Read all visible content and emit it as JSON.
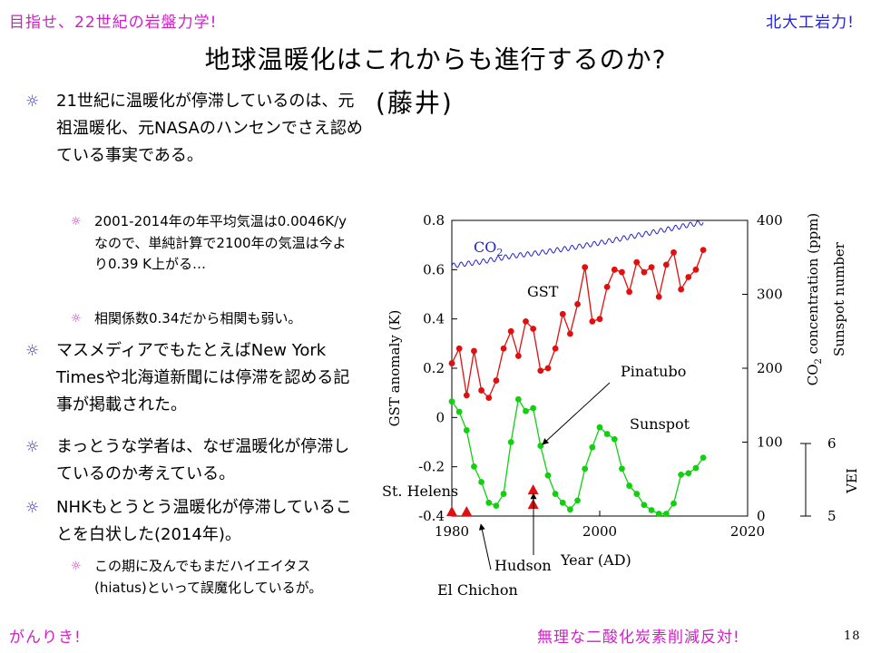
{
  "header": {
    "top_left": "目指せ、22世紀の岩盤力学!",
    "top_right": "北大工岩力!",
    "title": "地球温暖化はこれからも進行するのか?",
    "subtitle": "(藤井)"
  },
  "footer": {
    "bottom_left": "がんりき!",
    "bottom_right": "無理な二酸化炭素削減反対!",
    "page_number": "18"
  },
  "bullets": [
    {
      "text": "21世紀に温暖化が停滞しているのは、元祖温暖化、元NASAのハンセンでさえ認めている事実である。",
      "sub": [
        "2001-2014年の年平均気温は0.0046K/yなので、単純計算で2100年の気温は今より0.39 K上がる…",
        "相関係数0.34だから相関も弱い。"
      ]
    },
    {
      "text": "マスメディアでもたとえばNew York Timesや北海道新聞には停滞を認める記事が掲載された。",
      "sub": []
    },
    {
      "text": "まっとうな学者は、なぜ温暖化が停滞しているのか考えている。",
      "sub": []
    },
    {
      "text": "NHKもとうとう温暖化が停滞していることを白状した(2014年)。",
      "sub": [
        "この期に及んでもまだハイエイタス(hiatus)といって誤魔化しているが。"
      ]
    }
  ],
  "chart_data": {
    "type": "line",
    "xlabel": "Year (AD)",
    "ylabel_left": "GST anomaly (K)",
    "ylabel_right_1": "CO2 concentration (ppm)",
    "ylabel_right_2": "Sunspot number",
    "ylabel_vei": "VEI",
    "xlim": [
      1980,
      2020
    ],
    "x_ticks": [
      "1980",
      "2000",
      "2020"
    ],
    "ylim_left": [
      -0.4,
      0.8
    ],
    "y_ticks_left": [
      "-0.4",
      "-0.2",
      "0",
      "0.2",
      "0.4",
      "0.6",
      "0.8"
    ],
    "ylim_right": [
      0,
      400
    ],
    "y_ticks_right": [
      "0",
      "100",
      "200",
      "300",
      "400"
    ],
    "vei_ticks": [
      "5",
      "6"
    ],
    "series": [
      {
        "name": "CO2",
        "axis": "right",
        "color": "#2222cc",
        "x": [
          1980,
          1984,
          1988,
          1992,
          1996,
          2000,
          2004,
          2008,
          2012,
          2014
        ],
        "y": [
          338.7,
          344.1,
          351.6,
          356.4,
          362.6,
          369.6,
          377.5,
          385.6,
          393.8,
          397.2
        ]
      },
      {
        "name": "GST",
        "axis": "left",
        "color": "#e01010",
        "x": [
          1980,
          1981,
          1982,
          1983,
          1984,
          1985,
          1986,
          1987,
          1988,
          1989,
          1990,
          1991,
          1992,
          1993,
          1994,
          1995,
          1996,
          1997,
          1998,
          1999,
          2000,
          2001,
          2002,
          2003,
          2004,
          2005,
          2006,
          2007,
          2008,
          2009,
          2010,
          2011,
          2012,
          2013,
          2014
        ],
        "y": [
          0.22,
          0.28,
          0.09,
          0.27,
          0.11,
          0.08,
          0.15,
          0.28,
          0.35,
          0.25,
          0.39,
          0.36,
          0.19,
          0.2,
          0.28,
          0.42,
          0.34,
          0.46,
          0.61,
          0.39,
          0.4,
          0.53,
          0.6,
          0.59,
          0.51,
          0.63,
          0.59,
          0.61,
          0.49,
          0.62,
          0.67,
          0.52,
          0.57,
          0.6,
          0.68
        ]
      },
      {
        "name": "Sunspot",
        "axis": "right",
        "color": "#10d010",
        "x": [
          1980,
          1981,
          1982,
          1983,
          1984,
          1985,
          1986,
          1987,
          1988,
          1989,
          1990,
          1991,
          1992,
          1993,
          1994,
          1995,
          1996,
          1997,
          1998,
          1999,
          2000,
          2001,
          2002,
          2003,
          2004,
          2005,
          2006,
          2007,
          2008,
          2009,
          2010,
          2011,
          2012,
          2013,
          2014
        ],
        "y": [
          155,
          141,
          116,
          67,
          46,
          18,
          14,
          30,
          100,
          158,
          142,
          146,
          95,
          55,
          30,
          18,
          9,
          21,
          64,
          93,
          120,
          111,
          104,
          64,
          41,
          30,
          15,
          8,
          3,
          3,
          17,
          56,
          58,
          65,
          79
        ]
      },
      {
        "name": "VEI",
        "axis": "vei",
        "color": "#e01010",
        "marker": "triangle",
        "x": [
          1980,
          1982,
          1991,
          1991
        ],
        "y": [
          5,
          5,
          5.3,
          5.1
        ]
      }
    ],
    "annotations": [
      "Pinatubo",
      "St. Helens",
      "Hudson",
      "El Chichon"
    ]
  }
}
